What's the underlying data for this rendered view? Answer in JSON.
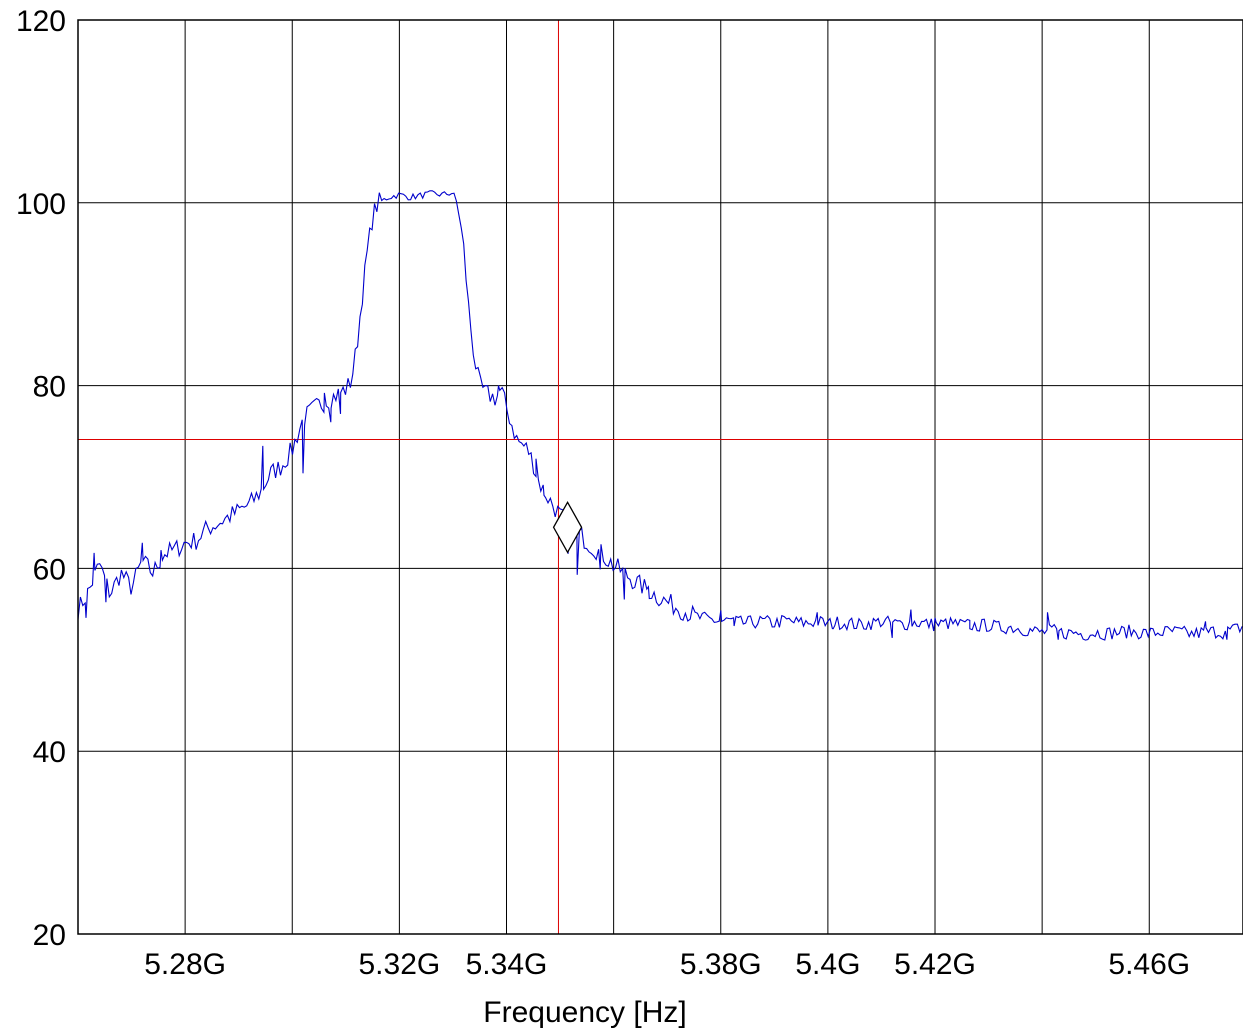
{
  "chart_data": {
    "type": "line",
    "xlabel": "Frequency [Hz]",
    "ylabel": "",
    "xlim": [
      5.26,
      5.4775
    ],
    "ylim": [
      20,
      120
    ],
    "x_unit": "GHz",
    "x_gridlines": [
      5.28,
      5.3,
      5.32,
      5.34,
      5.36,
      5.38,
      5.4,
      5.42,
      5.44,
      5.46
    ],
    "x_tick_labels": [
      {
        "x": 5.28,
        "label": "5.28G"
      },
      {
        "x": 5.32,
        "label": "5.32G"
      },
      {
        "x": 5.34,
        "label": "5.34G"
      },
      {
        "x": 5.38,
        "label": "5.38G"
      },
      {
        "x": 5.4,
        "label": "5.4G"
      },
      {
        "x": 5.42,
        "label": "5.42G"
      },
      {
        "x": 5.46,
        "label": "5.46G"
      }
    ],
    "y_ticks": [
      20,
      40,
      60,
      80,
      100,
      120
    ],
    "y_tick_labels": [
      "20",
      "40",
      "60",
      "80",
      "100",
      "120"
    ],
    "grid": true,
    "colors": {
      "series": "#0000cc",
      "cursor": "#dd0000",
      "grid": "#000000",
      "marker": "#000000"
    },
    "cursor": {
      "x": 5.3497,
      "y": 74.1
    },
    "marker": {
      "x": 5.3514,
      "y": 64.5,
      "shape": "diamond"
    },
    "series": [
      {
        "points": [
          [
            5.26,
            55.5
          ],
          [
            5.262,
            57.5
          ],
          [
            5.264,
            60.5
          ],
          [
            5.266,
            57.2
          ],
          [
            5.268,
            59.5
          ],
          [
            5.27,
            57.9
          ],
          [
            5.272,
            60.8
          ],
          [
            5.274,
            59.5
          ],
          [
            5.276,
            61.6
          ],
          [
            5.278,
            62.0
          ],
          [
            5.28,
            62.8
          ],
          [
            5.282,
            63.0
          ],
          [
            5.284,
            64.3
          ],
          [
            5.286,
            64.9
          ],
          [
            5.288,
            65.6
          ],
          [
            5.29,
            66.3
          ],
          [
            5.292,
            67.0
          ],
          [
            5.294,
            68.3
          ],
          [
            5.296,
            70.4
          ],
          [
            5.298,
            71.2
          ],
          [
            5.3,
            73.0
          ],
          [
            5.302,
            76.3
          ],
          [
            5.304,
            77.5
          ],
          [
            5.306,
            78.2
          ],
          [
            5.308,
            78.9
          ],
          [
            5.31,
            79.6
          ],
          [
            5.311,
            80.5
          ],
          [
            5.312,
            84.0
          ],
          [
            5.313,
            89.5
          ],
          [
            5.314,
            94.5
          ],
          [
            5.315,
            98.5
          ],
          [
            5.316,
            100.0
          ],
          [
            5.318,
            100.6
          ],
          [
            5.32,
            100.9
          ],
          [
            5.322,
            100.6
          ],
          [
            5.324,
            100.8
          ],
          [
            5.326,
            101.0
          ],
          [
            5.328,
            100.9
          ],
          [
            5.33,
            101.1
          ],
          [
            5.331,
            99.5
          ],
          [
            5.332,
            95.0
          ],
          [
            5.333,
            88.0
          ],
          [
            5.334,
            83.0
          ],
          [
            5.335,
            80.0
          ],
          [
            5.336,
            79.2
          ],
          [
            5.338,
            78.6
          ],
          [
            5.339,
            79.6
          ],
          [
            5.34,
            77.5
          ],
          [
            5.342,
            74.0
          ],
          [
            5.344,
            73.0
          ],
          [
            5.345,
            71.5
          ],
          [
            5.346,
            69.5
          ],
          [
            5.348,
            67.5
          ],
          [
            5.35,
            65.8
          ],
          [
            5.352,
            64.5
          ],
          [
            5.354,
            63.5
          ],
          [
            5.356,
            62.4
          ],
          [
            5.358,
            61.5
          ],
          [
            5.36,
            60.3
          ],
          [
            5.362,
            59.5
          ],
          [
            5.364,
            58.5
          ],
          [
            5.366,
            57.8
          ],
          [
            5.368,
            57.0
          ],
          [
            5.37,
            56.3
          ],
          [
            5.372,
            55.7
          ],
          [
            5.374,
            55.1
          ],
          [
            5.376,
            54.6
          ],
          [
            5.378,
            54.4
          ],
          [
            5.38,
            54.2
          ],
          [
            5.382,
            54.3
          ],
          [
            5.384,
            54.0
          ],
          [
            5.386,
            54.1
          ],
          [
            5.388,
            54.2
          ],
          [
            5.39,
            54.0
          ],
          [
            5.392,
            54.3
          ],
          [
            5.394,
            54.1
          ],
          [
            5.396,
            54.0
          ],
          [
            5.398,
            54.2
          ],
          [
            5.4,
            53.9
          ],
          [
            5.402,
            54.1
          ],
          [
            5.404,
            54.0
          ],
          [
            5.406,
            53.8
          ],
          [
            5.408,
            54.0
          ],
          [
            5.41,
            54.2
          ],
          [
            5.412,
            54.0
          ],
          [
            5.414,
            53.9
          ],
          [
            5.416,
            54.1
          ],
          [
            5.418,
            54.0
          ],
          [
            5.42,
            53.8
          ],
          [
            5.422,
            54.0
          ],
          [
            5.424,
            53.9
          ],
          [
            5.426,
            53.8
          ],
          [
            5.428,
            53.7
          ],
          [
            5.43,
            53.8
          ],
          [
            5.432,
            53.5
          ],
          [
            5.434,
            53.6
          ],
          [
            5.436,
            53.4
          ],
          [
            5.438,
            53.2
          ],
          [
            5.44,
            53.0
          ],
          [
            5.442,
            53.2
          ],
          [
            5.444,
            52.9
          ],
          [
            5.446,
            53.0
          ],
          [
            5.448,
            52.8
          ],
          [
            5.45,
            53.0
          ],
          [
            5.452,
            52.9
          ],
          [
            5.454,
            53.0
          ],
          [
            5.456,
            53.1
          ],
          [
            5.458,
            53.0
          ],
          [
            5.46,
            52.9
          ],
          [
            5.462,
            53.0
          ],
          [
            5.464,
            53.1
          ],
          [
            5.466,
            53.0
          ],
          [
            5.468,
            52.8
          ],
          [
            5.47,
            53.0
          ],
          [
            5.472,
            53.1
          ],
          [
            5.474,
            53.0
          ],
          [
            5.4775,
            53.6
          ]
        ],
        "noise": [
          {
            "x": 5.2615,
            "y": 54.6
          },
          {
            "x": 5.263,
            "y": 61.7
          },
          {
            "x": 5.2652,
            "y": 56.3
          },
          {
            "x": 5.272,
            "y": 62.8
          },
          {
            "x": 5.2755,
            "y": 62.0
          },
          {
            "x": 5.2945,
            "y": 73.4
          },
          {
            "x": 5.302,
            "y": 70.4
          },
          {
            "x": 5.306,
            "y": 79.2
          },
          {
            "x": 5.3072,
            "y": 76.0
          },
          {
            "x": 5.309,
            "y": 76.9
          },
          {
            "x": 5.3385,
            "y": 80.0
          },
          {
            "x": 5.3435,
            "y": 73.6
          },
          {
            "x": 5.3455,
            "y": 72.0
          },
          {
            "x": 5.347,
            "y": 68.0
          },
          {
            "x": 5.3515,
            "y": 61.6
          },
          {
            "x": 5.3532,
            "y": 59.3
          },
          {
            "x": 5.3575,
            "y": 59.9
          },
          {
            "x": 5.362,
            "y": 56.6
          },
          {
            "x": 5.3665,
            "y": 58.0
          },
          {
            "x": 5.38,
            "y": 55.4
          },
          {
            "x": 5.3825,
            "y": 53.7
          },
          {
            "x": 5.398,
            "y": 55.2
          },
          {
            "x": 5.401,
            "y": 53.4
          },
          {
            "x": 5.412,
            "y": 52.4
          },
          {
            "x": 5.4155,
            "y": 55.5
          },
          {
            "x": 5.42,
            "y": 54.6
          },
          {
            "x": 5.4265,
            "y": 53.4
          },
          {
            "x": 5.441,
            "y": 55.2
          },
          {
            "x": 5.443,
            "y": 52.2
          },
          {
            "x": 5.4705,
            "y": 54.2
          },
          {
            "x": 5.4745,
            "y": 52.2
          }
        ]
      }
    ]
  }
}
